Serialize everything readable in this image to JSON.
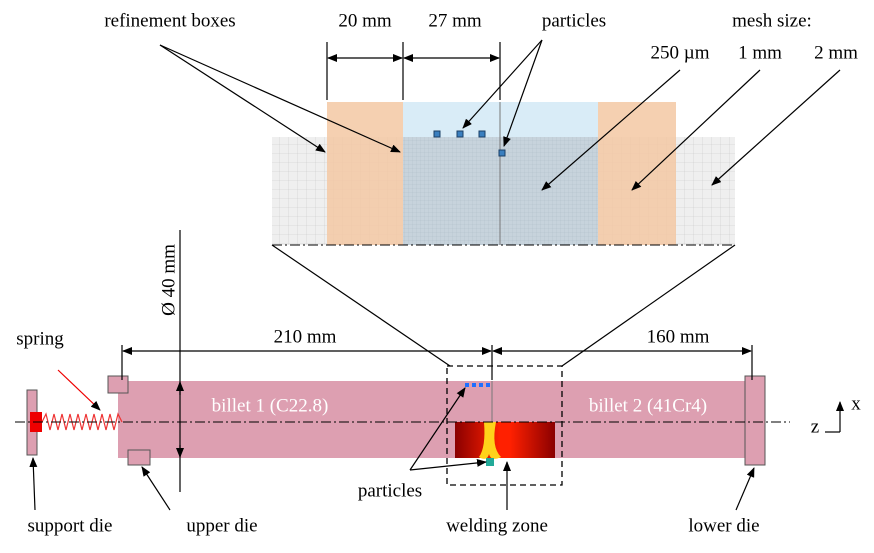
{
  "zoom": {
    "refinement_label": "refinement boxes",
    "dim_1": "20 mm",
    "dim_2": "27 mm",
    "particles_label": "particles",
    "mesh_title": "mesh size:",
    "mesh_1": "250 µm",
    "mesh_2": "1 mm",
    "mesh_3": "2 mm"
  },
  "assembly": {
    "diameter": "Ø 40 mm",
    "spring": "spring",
    "length_1": "210 mm",
    "length_2": "160 mm",
    "billet_1": "billet 1 (C22.8)",
    "billet_2": "billet 2 (41Cr4)",
    "axis_z": "z",
    "axis_x": "x",
    "particles_label": "particles",
    "support_die": "support die",
    "upper_die": "upper die",
    "welding_zone": "welding zone",
    "lower_die": "lower die"
  }
}
